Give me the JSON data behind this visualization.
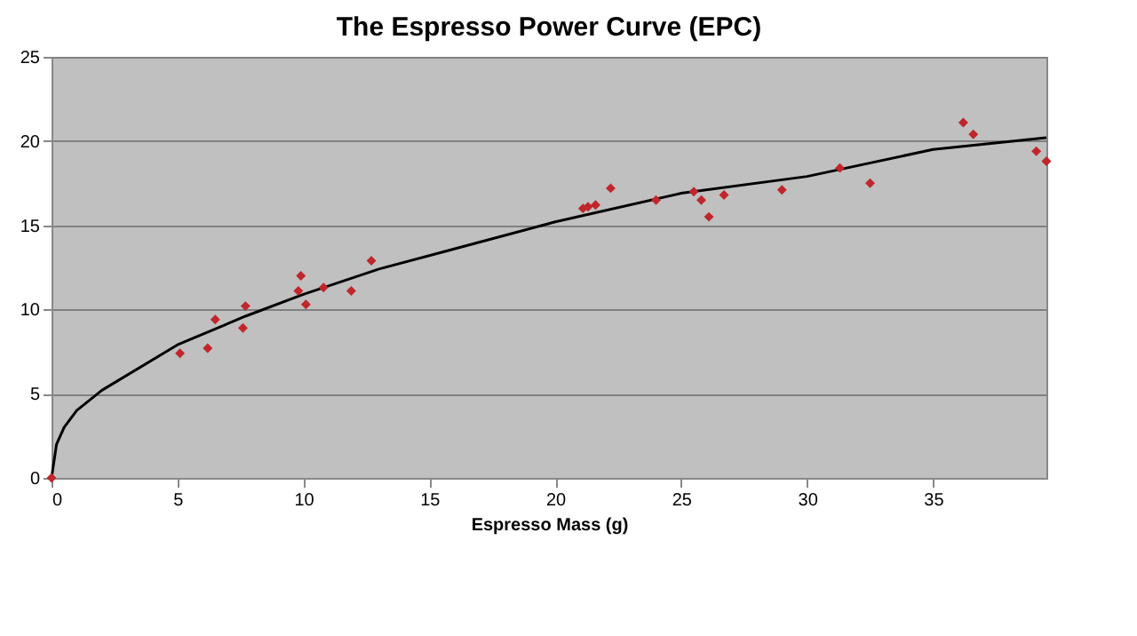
{
  "chart_data": {
    "type": "scatter",
    "title": "The Espresso Power Curve (EPC)",
    "xlabel": "Espresso Mass (g)",
    "xlim": [
      0,
      39.5
    ],
    "xticks": [
      0,
      5,
      10,
      15,
      20,
      25,
      30,
      35
    ],
    "ylim": [
      0,
      25
    ],
    "yticks": [
      0,
      5,
      10,
      15,
      20,
      25
    ],
    "grid": "y",
    "marker": "diamond",
    "series": [
      {
        "color": "#c0262b",
        "x": [
          0,
          5.1,
          6.2,
          6.5,
          7.6,
          7.7,
          9.9,
          9.8,
          10.1,
          10.8,
          11.9,
          12.7,
          21.1,
          21.3,
          21.6,
          22.2,
          24.0,
          25.5,
          25.8,
          26.1,
          26.7,
          29.0,
          31.3,
          32.5,
          36.2,
          36.6,
          39.1,
          39.5
        ],
        "values": [
          0,
          7.4,
          7.7,
          9.4,
          8.9,
          10.2,
          12.0,
          11.1,
          10.3,
          11.3,
          11.1,
          12.9,
          16.0,
          16.1,
          16.2,
          17.2,
          16.5,
          17.0,
          16.5,
          15.5,
          16.8,
          17.1,
          18.4,
          17.5,
          21.1,
          20.4,
          19.4,
          18.8
        ]
      },
      {
        "type": "line",
        "color": "#000000",
        "marker": "none",
        "x": [
          0,
          0.2,
          0.5,
          1,
          2,
          5,
          7.7,
          10,
          13,
          20,
          25,
          30,
          35,
          39.5
        ],
        "values": [
          0,
          2,
          3,
          4,
          5.2,
          7.9,
          9.6,
          10.9,
          12.4,
          15.2,
          16.9,
          17.9,
          19.5,
          20.2
        ]
      }
    ]
  }
}
